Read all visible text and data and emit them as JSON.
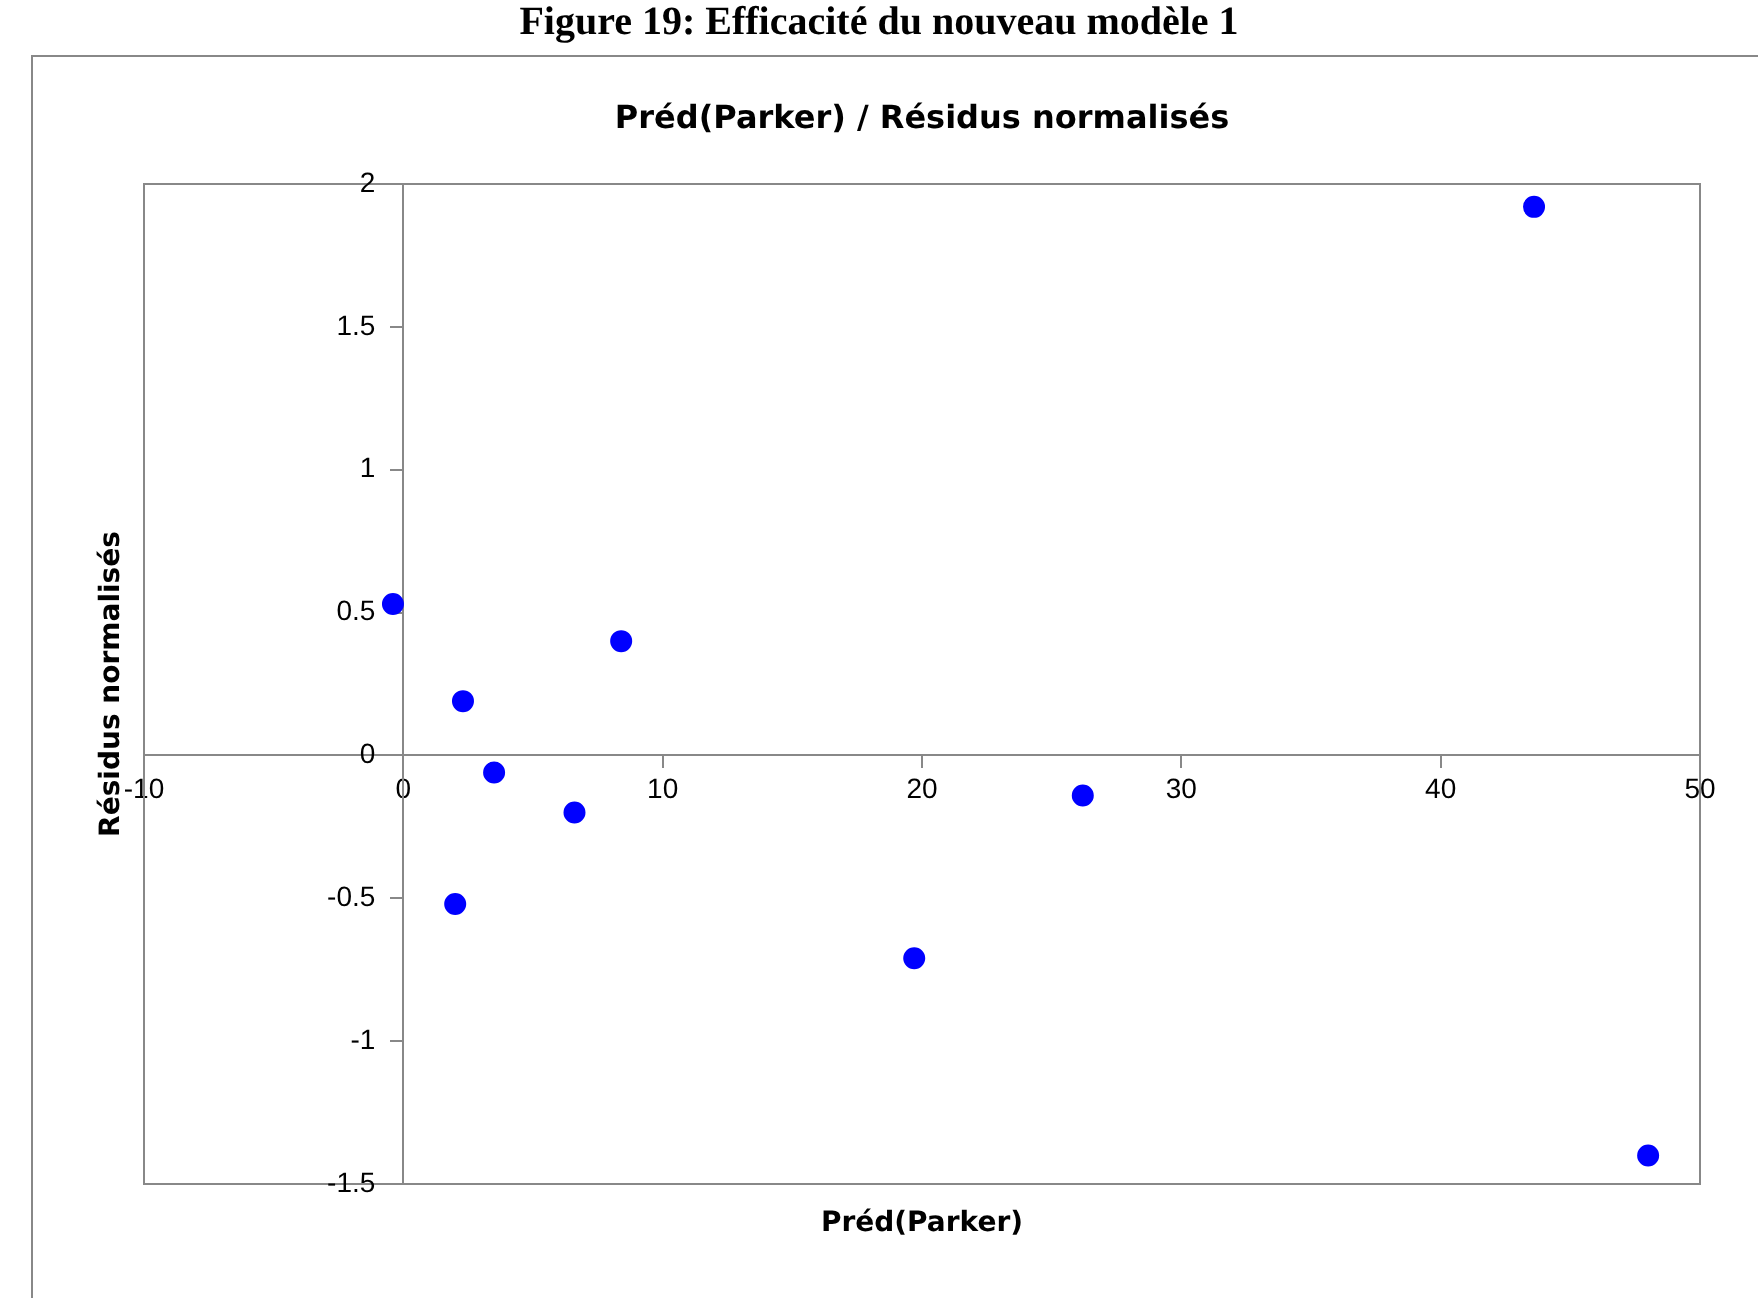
{
  "chart_data": {
    "type": "scatter",
    "title": "Préd(Parker) / Résidus normalisés",
    "xlabel": "Préd(Parker)",
    "ylabel": "Résidus normalisés",
    "annotations": [
      "Figure 19: Efficacité du nouveau modèle 1"
    ],
    "x": [
      -0.4,
      2.3,
      3.5,
      6.6,
      8.4,
      2.0,
      19.7,
      26.2,
      43.6,
      48.0
    ],
    "series": [
      {
        "color": "#0000ff",
        "values": [
          0.53,
          0.19,
          -0.06,
          -0.2,
          0.4,
          -0.52,
          -0.71,
          -0.14,
          1.92,
          -1.4
        ]
      }
    ],
    "xlim": [
      -10,
      50
    ],
    "xticks": [
      -10,
      0,
      10,
      20,
      30,
      40,
      50
    ],
    "ylim": [
      -1.5,
      2
    ],
    "yticks": [
      -1.5,
      -1,
      -0.5,
      0,
      0.5,
      1,
      1.5,
      2
    ],
    "grid": false,
    "legend": false,
    "marker": "circle"
  }
}
